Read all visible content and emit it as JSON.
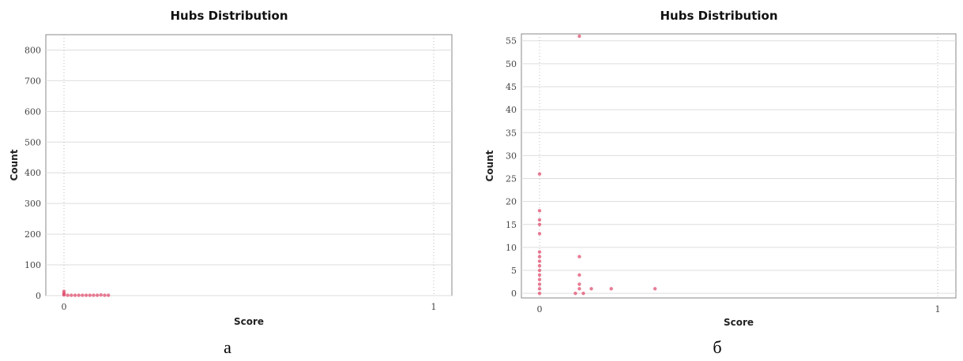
{
  "figures": [
    {
      "caption": "а"
    },
    {
      "caption": "б"
    }
  ],
  "chart_data": [
    {
      "type": "scatter",
      "title": "Hubs Distribution",
      "xlabel": "Score",
      "ylabel": "Count",
      "xlim": [
        0,
        1
      ],
      "ylim": [
        0,
        850
      ],
      "xticks": [
        0,
        1
      ],
      "yticks": [
        0,
        100,
        200,
        300,
        400,
        500,
        600,
        700,
        800
      ],
      "grid": true,
      "point_color": "#e05070",
      "points": [
        {
          "x": 0.0,
          "y": 14
        },
        {
          "x": 0.0,
          "y": 8
        },
        {
          "x": 0.0,
          "y": 4
        },
        {
          "x": 0.0,
          "y": 2
        },
        {
          "x": 0.01,
          "y": 1
        },
        {
          "x": 0.02,
          "y": 1
        },
        {
          "x": 0.03,
          "y": 1
        },
        {
          "x": 0.04,
          "y": 1
        },
        {
          "x": 0.05,
          "y": 1
        },
        {
          "x": 0.06,
          "y": 1
        },
        {
          "x": 0.07,
          "y": 1
        },
        {
          "x": 0.08,
          "y": 1
        },
        {
          "x": 0.09,
          "y": 1
        },
        {
          "x": 0.1,
          "y": 2
        },
        {
          "x": 0.11,
          "y": 1
        },
        {
          "x": 0.12,
          "y": 1
        }
      ]
    },
    {
      "type": "scatter",
      "title": "Hubs Distribution",
      "xlabel": "Score",
      "ylabel": "Count",
      "xlim": [
        0,
        1
      ],
      "ylim": [
        -1,
        56.5
      ],
      "xticks": [
        0,
        1
      ],
      "yticks": [
        0,
        5,
        10,
        15,
        20,
        25,
        30,
        35,
        40,
        45,
        50,
        55
      ],
      "grid": true,
      "point_color": "#e05070",
      "points": [
        {
          "x": 0.1,
          "y": 56
        },
        {
          "x": 0.0,
          "y": 26
        },
        {
          "x": 0.0,
          "y": 18
        },
        {
          "x": 0.0,
          "y": 16
        },
        {
          "x": 0.0,
          "y": 15
        },
        {
          "x": 0.0,
          "y": 13
        },
        {
          "x": 0.0,
          "y": 9
        },
        {
          "x": 0.0,
          "y": 8
        },
        {
          "x": 0.0,
          "y": 7
        },
        {
          "x": 0.0,
          "y": 6
        },
        {
          "x": 0.0,
          "y": 5
        },
        {
          "x": 0.0,
          "y": 4
        },
        {
          "x": 0.0,
          "y": 3
        },
        {
          "x": 0.0,
          "y": 2
        },
        {
          "x": 0.0,
          "y": 1
        },
        {
          "x": 0.0,
          "y": 0
        },
        {
          "x": 0.1,
          "y": 8
        },
        {
          "x": 0.1,
          "y": 4
        },
        {
          "x": 0.1,
          "y": 2
        },
        {
          "x": 0.1,
          "y": 1
        },
        {
          "x": 0.11,
          "y": 0
        },
        {
          "x": 0.09,
          "y": 0
        },
        {
          "x": 0.13,
          "y": 1
        },
        {
          "x": 0.18,
          "y": 1
        },
        {
          "x": 0.29,
          "y": 1
        }
      ]
    }
  ]
}
